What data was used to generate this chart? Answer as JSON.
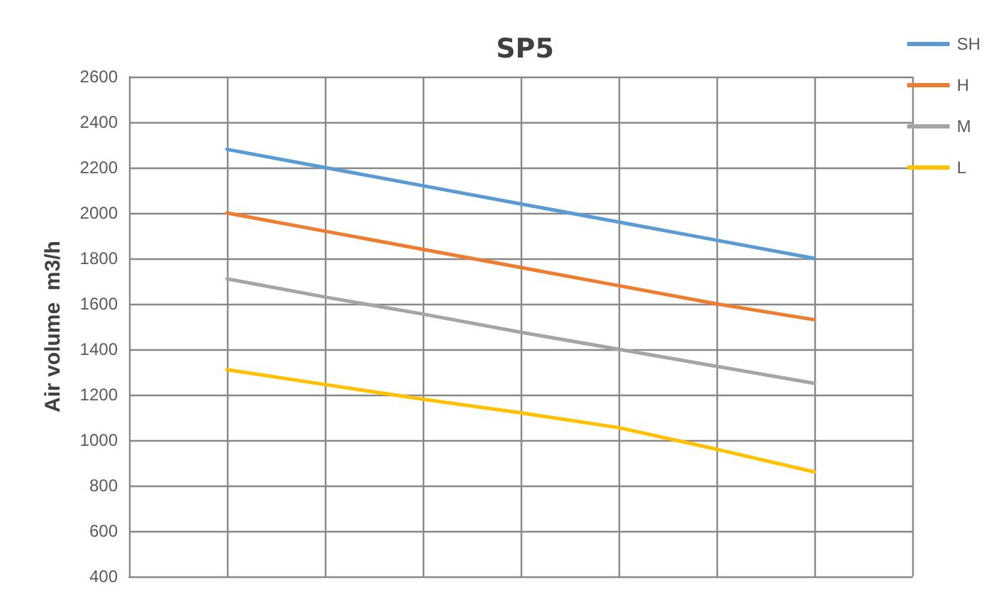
{
  "chart_data": {
    "type": "line",
    "title": "SP5",
    "ylabel": "Air volume  m3/h",
    "categories": [
      null,
      null,
      null,
      null,
      null,
      null,
      null,
      null,
      null
    ],
    "series": [
      {
        "name": "SH",
        "color": "#5b9bd5",
        "values": [
          null,
          2280,
          2200,
          2120,
          2040,
          1960,
          1880,
          1800,
          null
        ]
      },
      {
        "name": "H",
        "color": "#ed7d31",
        "values": [
          null,
          2000,
          1920,
          1840,
          1760,
          1680,
          1600,
          1530,
          null
        ]
      },
      {
        "name": "M",
        "color": "#a5a5a5",
        "values": [
          null,
          1710,
          1630,
          1555,
          1475,
          1400,
          1325,
          1250,
          null
        ]
      },
      {
        "name": "L",
        "color": "#ffc000",
        "values": [
          null,
          1310,
          1245,
          1180,
          1120,
          1055,
          960,
          860,
          null
        ]
      }
    ],
    "ylim": [
      400,
      2600
    ],
    "yticks": [
      400,
      600,
      800,
      1000,
      1200,
      1400,
      1600,
      1800,
      2000,
      2200,
      2400,
      2600
    ],
    "grid": true,
    "legend": "top right",
    "tick_labels": "y",
    "marker": "none",
    "line_style": "solid"
  }
}
